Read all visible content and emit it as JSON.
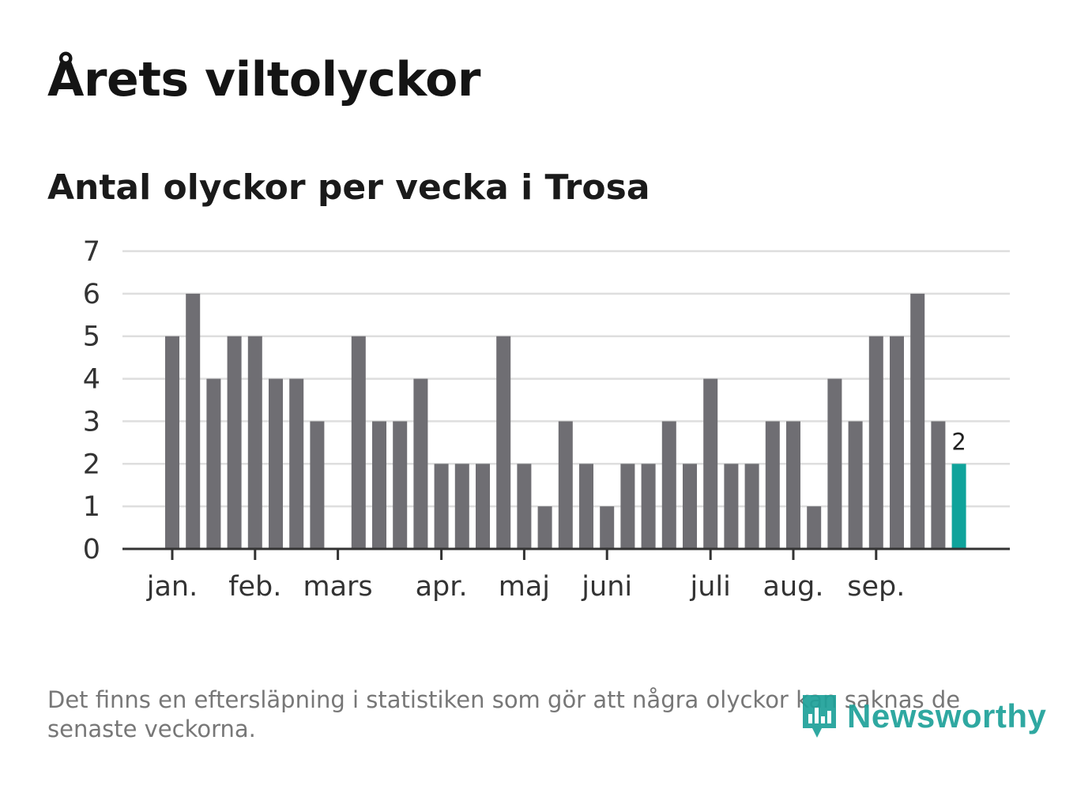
{
  "header": {
    "title": "Årets viltolyckor",
    "subtitle": "Antal olyckor per vecka i Trosa"
  },
  "footer": {
    "note": "Det finns en eftersläpning i statistiken som gör att några olyckor kan saknas de senaste veckorna.",
    "brand": "Newsworthy",
    "brand_icon": "newsworthy-logo-icon"
  },
  "colors": {
    "bar": "#6f6e73",
    "highlight": "#0fa39b",
    "grid": "#dedede",
    "axis": "#333333",
    "brand": "#20a29a"
  },
  "chart_data": {
    "type": "bar",
    "title": "Antal olyckor per vecka i Trosa",
    "xlabel": "",
    "ylabel": "",
    "ylim": [
      0,
      7
    ],
    "yticks": [
      "0",
      "1",
      "2",
      "3",
      "4",
      "5",
      "6",
      "7"
    ],
    "grid": true,
    "week_start": 1,
    "week_end": 39,
    "values": [
      5,
      6,
      4,
      5,
      5,
      4,
      4,
      3,
      0,
      5,
      3,
      3,
      4,
      2,
      2,
      2,
      5,
      2,
      1,
      3,
      2,
      1,
      2,
      2,
      3,
      2,
      4,
      2,
      2,
      3,
      3,
      1,
      4,
      3,
      5,
      5,
      6,
      3,
      2
    ],
    "highlight_index": 38,
    "highlight_label": "2",
    "month_ticks": [
      {
        "label": "jan.",
        "week": 1
      },
      {
        "label": "feb.",
        "week": 5
      },
      {
        "label": "mars",
        "week": 9
      },
      {
        "label": "apr.",
        "week": 14
      },
      {
        "label": "maj",
        "week": 18
      },
      {
        "label": "juni",
        "week": 22
      },
      {
        "label": "juli",
        "week": 27
      },
      {
        "label": "aug.",
        "week": 31
      },
      {
        "label": "sep.",
        "week": 35
      }
    ]
  }
}
